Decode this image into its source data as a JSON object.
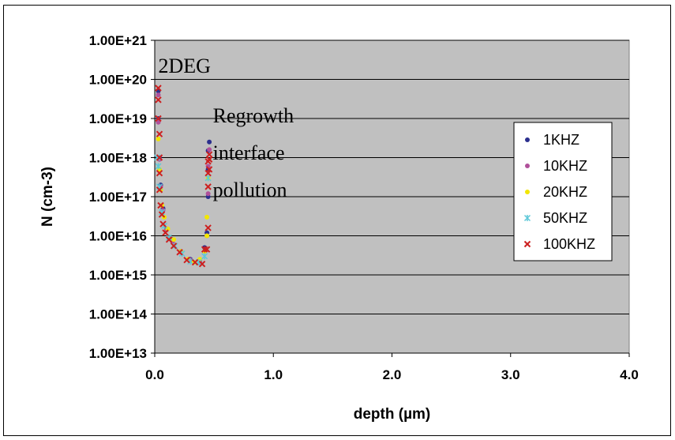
{
  "chart_data": {
    "type": "scatter",
    "xlabel": "depth (µm)",
    "ylabel": "N (cm-3)",
    "xlim": [
      0.0,
      4.0
    ],
    "ylim_log10": [
      13,
      21
    ],
    "y_scale": "log",
    "grid": "horizontal",
    "background": "#c0c0c0",
    "legend_position": "right",
    "x_ticks": [
      "0.0",
      "1.0",
      "2.0",
      "3.0",
      "4.0"
    ],
    "x_tick_values": [
      0,
      1,
      2,
      3,
      4
    ],
    "y_ticks": [
      "1.00E+13",
      "1.00E+14",
      "1.00E+15",
      "1.00E+16",
      "1.00E+17",
      "1.00E+18",
      "1.00E+19",
      "1.00E+20",
      "1.00E+21"
    ],
    "y_tick_values": [
      10000000000000.0,
      100000000000000.0,
      1000000000000000.0,
      1e+16,
      1e+17,
      1e+18,
      1e+19,
      1e+20,
      1e+21
    ],
    "annotations": [
      {
        "text": "2DEG",
        "x": 0.03,
        "y": 1.5e+20
      },
      {
        "text": "Regrowth",
        "x": 0.49,
        "y": 8e+18
      },
      {
        "text": "interface",
        "x": 0.49,
        "y": 9e+17
      },
      {
        "text": "pollution",
        "x": 0.49,
        "y": 1e+17
      }
    ],
    "series": [
      {
        "name": "1KHZ",
        "marker": "dot",
        "color": "#2b2f8e",
        "x": [
          0.03,
          0.03,
          0.04,
          0.05,
          0.07,
          0.1,
          0.15,
          0.22,
          0.3,
          0.38,
          0.42,
          0.44,
          0.45,
          0.45,
          0.45,
          0.46
        ],
        "y": [
          5e+19,
          1e+19,
          1e+18,
          2e+17,
          5e+16,
          1.5e+16,
          8000000000000000.0,
          4000000000000000.0,
          2500000000000000.0,
          2200000000000000.0,
          5000000000000000.0,
          1.2e+16,
          1e+17,
          5e+17,
          1.5e+18,
          2.5e+18
        ]
      },
      {
        "name": "10KHZ",
        "marker": "dot",
        "color": "#b0509a",
        "x": [
          0.03,
          0.03,
          0.04,
          0.05,
          0.07,
          0.1,
          0.15,
          0.22,
          0.3,
          0.38,
          0.42,
          0.44,
          0.45,
          0.45,
          0.46
        ],
        "y": [
          4e+19,
          8e+18,
          9e+17,
          1.8e+17,
          4.5e+16,
          1.4e+16,
          7000000000000000.0,
          3800000000000000.0,
          2400000000000000.0,
          2100000000000000.0,
          4000000000000000.0,
          1e+16,
          1.2e+17,
          6e+17,
          1.6e+18
        ]
      },
      {
        "name": "20KHZ",
        "marker": "dot",
        "color": "#f2e600",
        "x": [
          0.03,
          0.04,
          0.05,
          0.06,
          0.08,
          0.11,
          0.16,
          0.22,
          0.28,
          0.33,
          0.38,
          0.42,
          0.44,
          0.44,
          0.45
        ],
        "y": [
          3e+18,
          5e+17,
          1.5e+17,
          6e+16,
          3e+16,
          1.5e+16,
          8000000000000000.0,
          4000000000000000.0,
          2500000000000000.0,
          2100000000000000.0,
          2500000000000000.0,
          4000000000000000.0,
          1e+16,
          3e+16,
          3e+17
        ]
      },
      {
        "name": "50KHZ",
        "marker": "asterisk",
        "color": "#5fc8d8",
        "x": [
          0.02,
          0.03,
          0.04,
          0.06,
          0.08,
          0.12,
          0.17,
          0.23,
          0.3,
          0.37,
          0.42,
          0.45
        ],
        "y": [
          1e+18,
          6e+17,
          1.8e+17,
          4e+16,
          1.8e+16,
          9000000000000000.0,
          5500000000000000.0,
          3500000000000000.0,
          2200000000000000.0,
          2100000000000000.0,
          3000000000000000.0,
          3e+17
        ]
      },
      {
        "name": "100KHZ",
        "marker": "x",
        "color": "#cc2020",
        "x": [
          0.03,
          0.03,
          0.03,
          0.04,
          0.04,
          0.04,
          0.04,
          0.05,
          0.06,
          0.07,
          0.09,
          0.12,
          0.16,
          0.21,
          0.27,
          0.34,
          0.4,
          0.42,
          0.44,
          0.45,
          0.45,
          0.45,
          0.45,
          0.46,
          0.46,
          0.46
        ],
        "y": [
          6e+19,
          3e+19,
          1e+19,
          4e+18,
          1e+18,
          4e+17,
          1.5e+17,
          6e+16,
          3.5e+16,
          2e+16,
          1.2e+16,
          8000000000000000.0,
          5500000000000000.0,
          3800000000000000.0,
          2400000000000000.0,
          2100000000000000.0,
          1900000000000000.0,
          4500000000000000.0,
          4500000000000000.0,
          1.6e+16,
          1.8e+17,
          4e+17,
          8e+17,
          1.2e+18,
          5e+17,
          9e+17
        ]
      }
    ]
  }
}
